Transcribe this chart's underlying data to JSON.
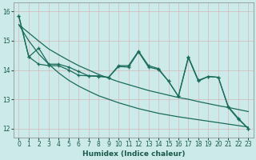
{
  "xlabel": "Humidex (Indice chaleur)",
  "background_color": "#cceaea",
  "grid_color": "#b8d8d8",
  "line_color": "#1a6b5a",
  "xlim": [
    -0.5,
    23.5
  ],
  "ylim": [
    11.7,
    16.3
  ],
  "yticks": [
    12,
    13,
    14,
    15,
    16
  ],
  "xticks": [
    0,
    1,
    2,
    3,
    4,
    5,
    6,
    7,
    8,
    9,
    10,
    11,
    12,
    13,
    14,
    15,
    16,
    17,
    18,
    19,
    20,
    21,
    22,
    23
  ],
  "x_data": [
    0,
    1,
    2,
    3,
    4,
    5,
    6,
    7,
    8,
    9,
    10,
    11,
    12,
    13,
    14,
    15,
    16,
    17,
    18,
    19,
    20,
    21,
    22,
    23
  ],
  "y_jagged1": [
    15.85,
    14.45,
    14.75,
    14.2,
    14.2,
    14.1,
    13.95,
    13.8,
    13.8,
    13.75,
    14.15,
    14.15,
    14.65,
    14.15,
    14.05,
    13.62,
    13.1,
    14.45,
    13.65,
    13.78,
    13.75,
    12.75,
    12.35,
    12.0
  ],
  "y_jagged2": [
    15.85,
    14.45,
    14.2,
    14.15,
    14.15,
    14.0,
    13.82,
    13.8,
    13.78,
    13.75,
    14.12,
    14.1,
    14.62,
    14.1,
    14.02,
    13.62,
    13.1,
    14.42,
    13.62,
    13.78,
    13.75,
    12.72,
    12.32,
    12.0
  ],
  "y_trend_upper": [
    15.55,
    15.27,
    14.99,
    14.72,
    14.52,
    14.33,
    14.15,
    14.0,
    13.85,
    13.72,
    13.6,
    13.5,
    13.4,
    13.3,
    13.22,
    13.14,
    13.06,
    13.0,
    12.92,
    12.85,
    12.78,
    12.72,
    12.65,
    12.58
  ],
  "y_trend_lower": [
    15.55,
    15.0,
    14.55,
    14.2,
    13.9,
    13.65,
    13.45,
    13.28,
    13.12,
    13.0,
    12.88,
    12.78,
    12.68,
    12.6,
    12.52,
    12.46,
    12.4,
    12.35,
    12.3,
    12.25,
    12.2,
    12.15,
    12.1,
    12.05
  ]
}
